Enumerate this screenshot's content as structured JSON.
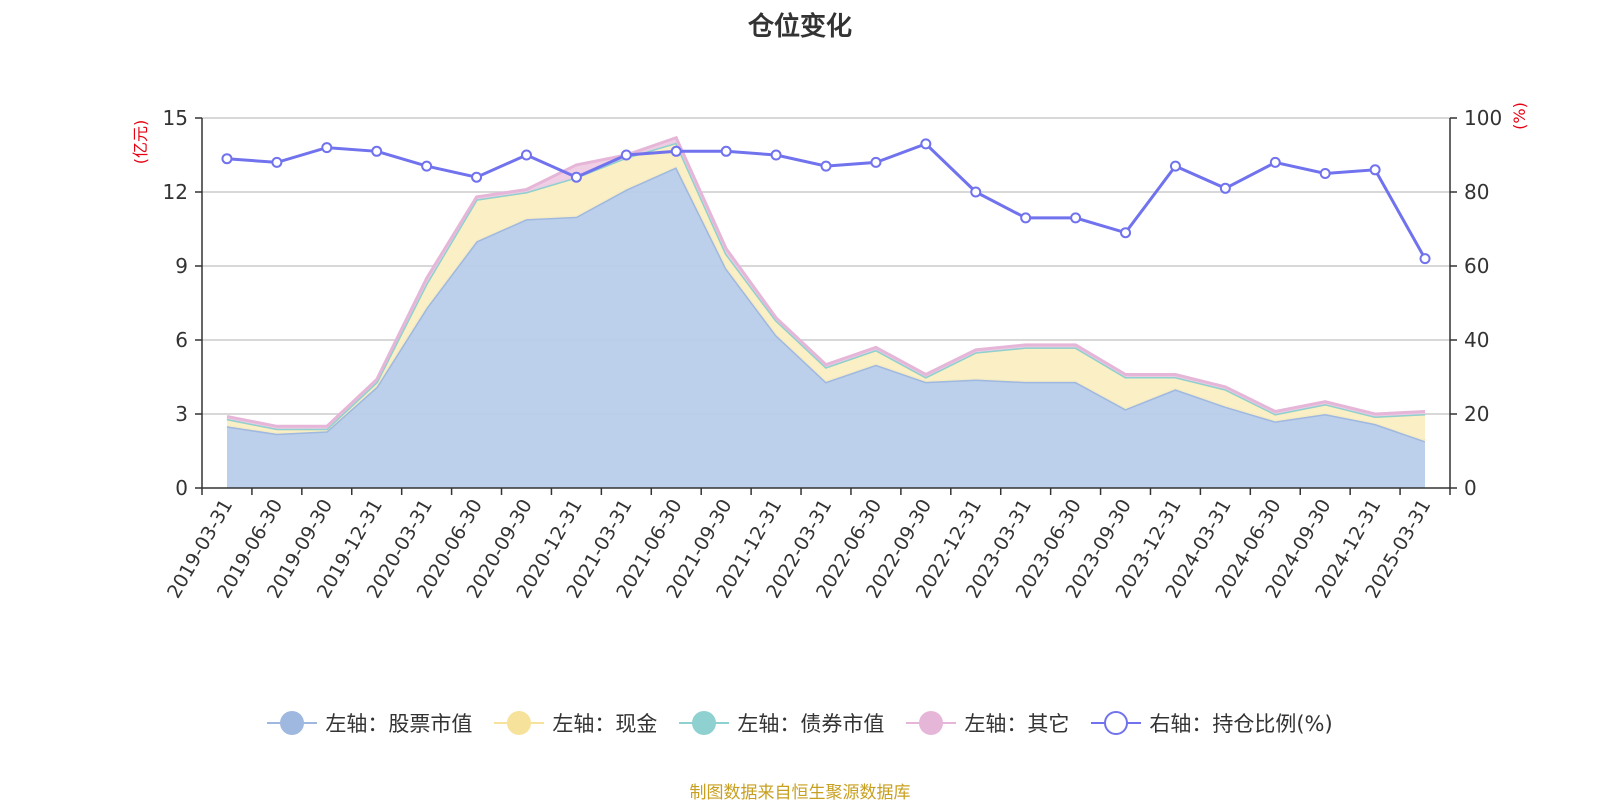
{
  "chart_data": {
    "type": "area",
    "title": "仓位变化",
    "left_axis_unit": "(亿元)",
    "right_axis_unit": "(%)",
    "categories": [
      "2019-03-31",
      "2019-06-30",
      "2019-09-30",
      "2019-12-31",
      "2020-03-31",
      "2020-06-30",
      "2020-09-30",
      "2020-12-31",
      "2021-03-31",
      "2021-06-30",
      "2021-09-30",
      "2021-12-31",
      "2022-03-31",
      "2022-06-30",
      "2022-09-30",
      "2022-12-31",
      "2023-03-31",
      "2023-06-30",
      "2023-09-30",
      "2023-12-31",
      "2024-03-31",
      "2024-06-30",
      "2024-09-30",
      "2024-12-31",
      "2025-03-31"
    ],
    "left_ylim": [
      0,
      15
    ],
    "left_ticks": [
      0,
      3,
      6,
      9,
      12,
      15
    ],
    "right_ylim": [
      0,
      100
    ],
    "right_ticks": [
      0,
      20,
      40,
      60,
      80,
      100
    ],
    "grid": true,
    "legend_position": "bottom",
    "series": [
      {
        "name": "左轴：股票市值",
        "axis": "left",
        "color": "#9fb8df",
        "fill": "#b8cdea",
        "values": [
          2.5,
          2.2,
          2.3,
          4.1,
          7.3,
          10.0,
          10.9,
          11.0,
          12.1,
          13.0,
          8.9,
          6.2,
          4.3,
          5.0,
          4.3,
          4.4,
          4.3,
          4.3,
          3.2,
          4.0,
          3.3,
          2.7,
          3.0,
          2.6,
          1.9
        ]
      },
      {
        "name": "左轴：现金",
        "axis": "left",
        "color": "#f7e29b",
        "fill": "#fbeec2",
        "values": [
          0.3,
          0.2,
          0.1,
          0.2,
          1.0,
          1.7,
          1.1,
          1.6,
          1.3,
          1.0,
          0.6,
          0.6,
          0.6,
          0.6,
          0.2,
          1.1,
          1.4,
          1.4,
          1.3,
          0.5,
          0.7,
          0.3,
          0.4,
          0.3,
          1.1
        ]
      },
      {
        "name": "左轴：债券市值",
        "axis": "left",
        "color": "#8fd0d0",
        "fill": "#a8dede",
        "values": [
          0,
          0,
          0,
          0,
          0,
          0,
          0,
          0,
          0,
          0,
          0,
          0,
          0,
          0,
          0,
          0,
          0,
          0,
          0,
          0,
          0,
          0,
          0,
          0,
          0
        ]
      },
      {
        "name": "左轴：其它",
        "axis": "left",
        "color": "#e6b6d8",
        "fill": "#efcce4",
        "values": [
          0.1,
          0.1,
          0.1,
          0.1,
          0.2,
          0.1,
          0.1,
          0.5,
          0.1,
          0.2,
          0.2,
          0.1,
          0.1,
          0.1,
          0.1,
          0.1,
          0.1,
          0.1,
          0.1,
          0.1,
          0.1,
          0.1,
          0.1,
          0.1,
          0.1
        ]
      },
      {
        "name": "右轴：持仓比例(%)",
        "axis": "right",
        "color": "#7072ee",
        "type": "line",
        "values": [
          89,
          88,
          92,
          91,
          87,
          84,
          90,
          84,
          90,
          91,
          91,
          90,
          87,
          88,
          93,
          80,
          73,
          73,
          69,
          87,
          81,
          88,
          85,
          86,
          62
        ]
      }
    ]
  },
  "source_note": "制图数据来自恒生聚源数据库"
}
